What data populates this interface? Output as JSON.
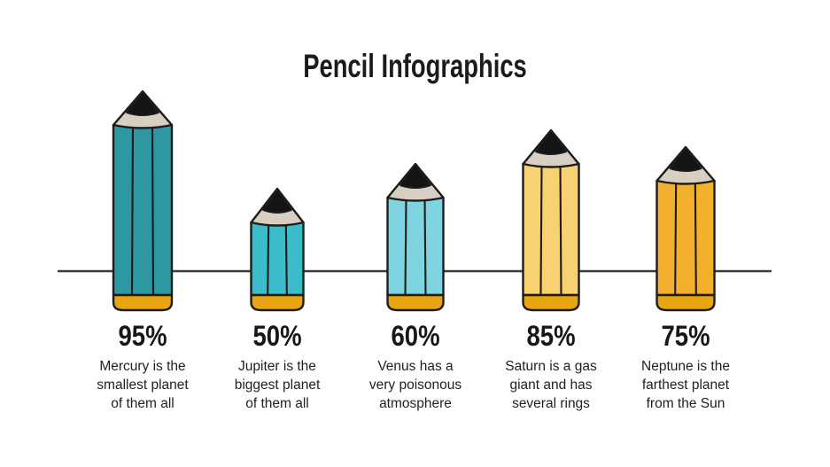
{
  "header": {
    "title": "Pencil Infographics"
  },
  "chart_data": {
    "type": "bar",
    "variant": "pictorial-pencil-bars",
    "title": "Pencil Infographics",
    "categories": [
      "Mercury",
      "Jupiter",
      "Venus",
      "Saturn",
      "Neptune"
    ],
    "values": [
      95,
      50,
      60,
      85,
      75
    ],
    "ylim": [
      0,
      100
    ],
    "grid": false,
    "legend": "none",
    "xlabel": "",
    "ylabel": "",
    "axis": {
      "baseline_visible": true,
      "baseline_color": "#3a3a3a"
    },
    "items": [
      {
        "planet": "Mercury",
        "value": 95,
        "percent_label": "95%",
        "caption": "Mercury is the\nsmallest planet\nof them all",
        "body_color": "#2D97A2"
      },
      {
        "planet": "Jupiter",
        "value": 50,
        "percent_label": "50%",
        "caption": "Jupiter is the\nbiggest planet\nof them all",
        "body_color": "#3ABCCB"
      },
      {
        "planet": "Venus",
        "value": 60,
        "percent_label": "60%",
        "caption": "Venus has a\nvery poisonous\natmosphere",
        "body_color": "#7ED5E1"
      },
      {
        "planet": "Saturn",
        "value": 85,
        "percent_label": "85%",
        "caption": "Saturn is a gas\ngiant and has\nseveral rings",
        "body_color": "#F8D171"
      },
      {
        "planet": "Neptune",
        "value": 75,
        "percent_label": "75%",
        "caption": "Neptune is the\nfarthest planet\nfrom the Sun",
        "body_color": "#F3B02C"
      }
    ],
    "colors": {
      "pencil_tip": "#141414",
      "pencil_wood": "#D8CEC2",
      "pencil_eraser_cap": "#E9A412",
      "outline": "#1c1c1c",
      "text": "#1e1e1e",
      "background": "#ffffff"
    }
  }
}
